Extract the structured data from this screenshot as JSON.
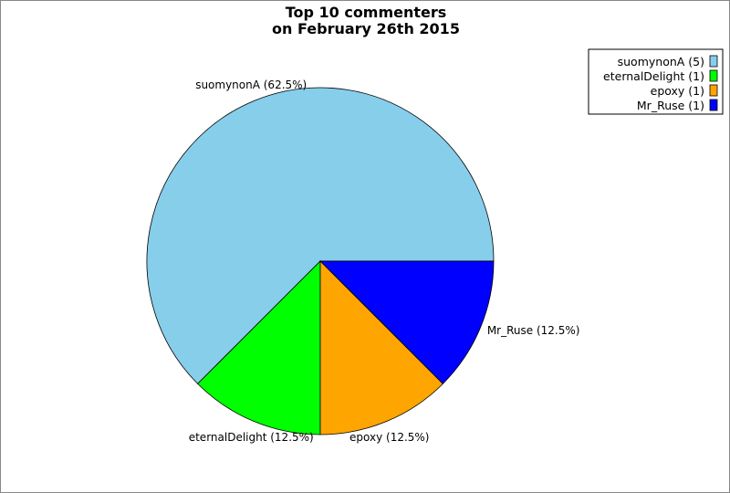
{
  "chart_data": {
    "type": "pie",
    "title": [
      "Top 10 commenters",
      "on February 26th 2015"
    ],
    "start_angle_deg": 0,
    "direction": "counterclockwise",
    "slices": [
      {
        "label": "suomynonA",
        "value": 5,
        "percent_label": "suomynonA (62.5%)",
        "legend_label": "suomynonA (5)",
        "color": "#87ceeb"
      },
      {
        "label": "eternalDelight",
        "value": 1,
        "percent_label": "eternalDelight (12.5%)",
        "legend_label": "eternalDelight (1)",
        "color": "#00ff00"
      },
      {
        "label": "epoxy",
        "value": 1,
        "percent_label": "epoxy (12.5%)",
        "legend_label": "epoxy (1)",
        "color": "#ffa500"
      },
      {
        "label": "Mr_Ruse",
        "value": 1,
        "percent_label": "Mr_Ruse (12.5%)",
        "legend_label": "Mr_Ruse (1)",
        "color": "#0000ff"
      }
    ],
    "legend_position": "top-right"
  }
}
